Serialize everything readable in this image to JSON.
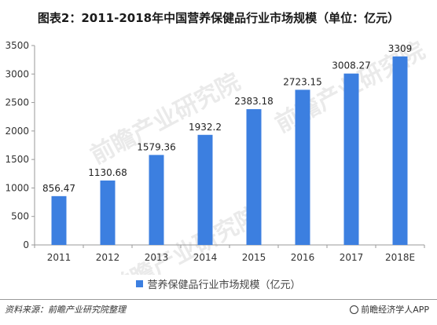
{
  "header": {
    "title": "图表2：2011-2018年中国营养保健品行业市场规模（单位：亿元）"
  },
  "chart_data": {
    "type": "bar",
    "categories": [
      "2011",
      "2012",
      "2013",
      "2014",
      "2015",
      "2016",
      "2017",
      "2018E"
    ],
    "series": [
      {
        "name": "营养保健品行业市场规模（亿元）",
        "values": [
          856.47,
          1130.68,
          1579.36,
          1932.2,
          2383.18,
          2723.15,
          3008.27,
          3309
        ],
        "labels": [
          "856.47",
          "1130.68",
          "1579.36",
          "1932.2",
          "2383.18",
          "2723.15",
          "3008.27",
          "3309"
        ]
      }
    ],
    "ylim": [
      0,
      3500
    ],
    "yticks": [
      0,
      500,
      1000,
      1500,
      2000,
      2500,
      3000,
      3500
    ],
    "grid": false,
    "legend_position": "bottom",
    "bar_color": "#3c7fe0"
  },
  "footer": {
    "source": "资料来源：前瞻产业研究院整理",
    "brand": "前瞻经济学人APP"
  },
  "watermark": {
    "text": "前瞻产业研究院"
  }
}
